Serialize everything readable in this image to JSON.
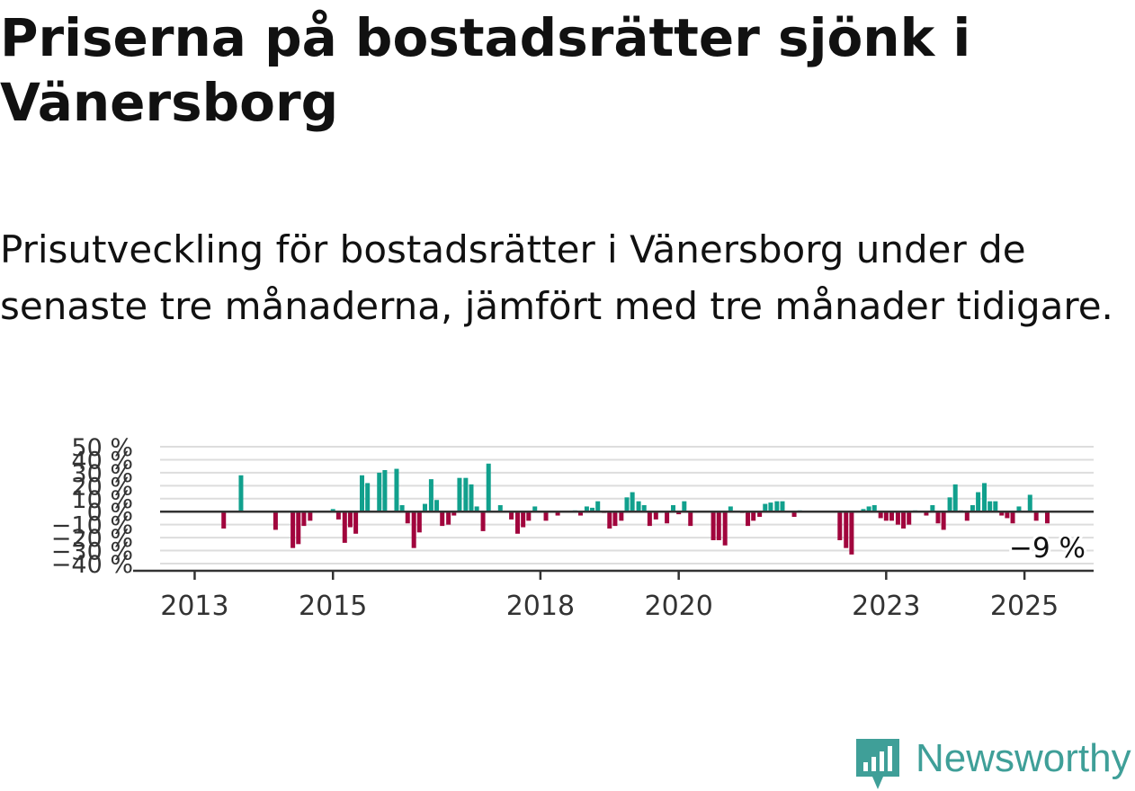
{
  "title": "Priserna på bostadsrätter sjönk i Vänersborg",
  "subtitle": "Prisutveckling för bostadsrätter i Vänersborg under de senaste tre månaderna, jämfört med tre månader tidigare.",
  "brand": {
    "name": "Newsworthy",
    "color": "#3f9f98",
    "icon": "newsworthy-logo-icon"
  },
  "colors": {
    "positive": "#11a08d",
    "negative": "#a1053d",
    "zero_line": "#333333",
    "grid": "#dddddd",
    "axis": "#333333"
  },
  "chart_data": {
    "type": "bar",
    "title": "",
    "xlabel": "",
    "ylabel": "",
    "ylim": [
      -40,
      50
    ],
    "y_ticks": [
      50,
      40,
      30,
      20,
      10,
      0,
      -10,
      -20,
      -30,
      -40
    ],
    "y_tick_labels": [
      "50 %",
      "40 %",
      "30 %",
      "20 %",
      "10 %",
      "0 %",
      "−10 %",
      "−20 %",
      "−30 %",
      "−40 %"
    ],
    "x_ticks": [
      2013,
      2015,
      2018,
      2020,
      2023,
      2025
    ],
    "x_tick_labels": [
      "2013",
      "2015",
      "2018",
      "2020",
      "2023",
      "2025"
    ],
    "xlim": [
      2012.5,
      2026.0
    ],
    "grid": true,
    "last_value_label": "−9 %",
    "x": [
      2013.42,
      2013.67,
      2014.17,
      2014.42,
      2014.5,
      2014.58,
      2014.67,
      2015.0,
      2015.08,
      2015.17,
      2015.25,
      2015.33,
      2015.42,
      2015.5,
      2015.67,
      2015.75,
      2015.92,
      2016.0,
      2016.08,
      2016.17,
      2016.25,
      2016.33,
      2016.42,
      2016.5,
      2016.58,
      2016.67,
      2016.75,
      2016.83,
      2016.92,
      2017.0,
      2017.08,
      2017.17,
      2017.25,
      2017.42,
      2017.58,
      2017.67,
      2017.75,
      2017.83,
      2017.92,
      2018.08,
      2018.25,
      2018.5,
      2018.58,
      2018.67,
      2018.75,
      2018.83,
      2018.92,
      2019.0,
      2019.08,
      2019.17,
      2019.25,
      2019.33,
      2019.42,
      2019.5,
      2019.58,
      2019.67,
      2019.83,
      2019.92,
      2020.0,
      2020.08,
      2020.17,
      2020.5,
      2020.58,
      2020.67,
      2020.75,
      2020.92,
      2021.0,
      2021.08,
      2021.17,
      2021.25,
      2021.33,
      2021.42,
      2021.5,
      2021.67,
      2021.75,
      2022.33,
      2022.42,
      2022.5,
      2022.67,
      2022.75,
      2022.83,
      2022.92,
      2023.0,
      2023.08,
      2023.17,
      2023.25,
      2023.33,
      2023.42,
      2023.58,
      2023.67,
      2023.75,
      2023.83,
      2023.92,
      2024.0,
      2024.08,
      2024.17,
      2024.25,
      2024.33,
      2024.42,
      2024.5,
      2024.58,
      2024.67,
      2024.75,
      2024.83,
      2024.92,
      2025.08,
      2025.17,
      2025.33
    ],
    "values": [
      -13,
      28,
      -14,
      -28,
      -25,
      -11,
      -7,
      2,
      -6,
      -24,
      -12,
      -17,
      28,
      22,
      30,
      32,
      33,
      5,
      -9,
      -28,
      -16,
      6,
      25,
      9,
      -11,
      -10,
      -3,
      26,
      26,
      21,
      4,
      -15,
      37,
      5,
      -6,
      -17,
      -12,
      -7,
      4,
      -7,
      -3,
      1,
      -3,
      4,
      3,
      8,
      -1,
      -13,
      -11,
      -7,
      11,
      15,
      8,
      5,
      -11,
      -6,
      -9,
      5,
      -2,
      8,
      -11,
      -22,
      -22,
      -26,
      4,
      -1,
      -11,
      -7,
      -4,
      6,
      7,
      8,
      8,
      -4,
      1,
      -22,
      -28,
      -33,
      2,
      4,
      5,
      -5,
      -7,
      -7,
      -10,
      -13,
      -10,
      1,
      -3,
      5,
      -9,
      -14,
      11,
      21,
      1,
      -7,
      5,
      15,
      22,
      8,
      8,
      -3,
      -5,
      -9,
      4,
      13,
      -7,
      -9
    ]
  }
}
